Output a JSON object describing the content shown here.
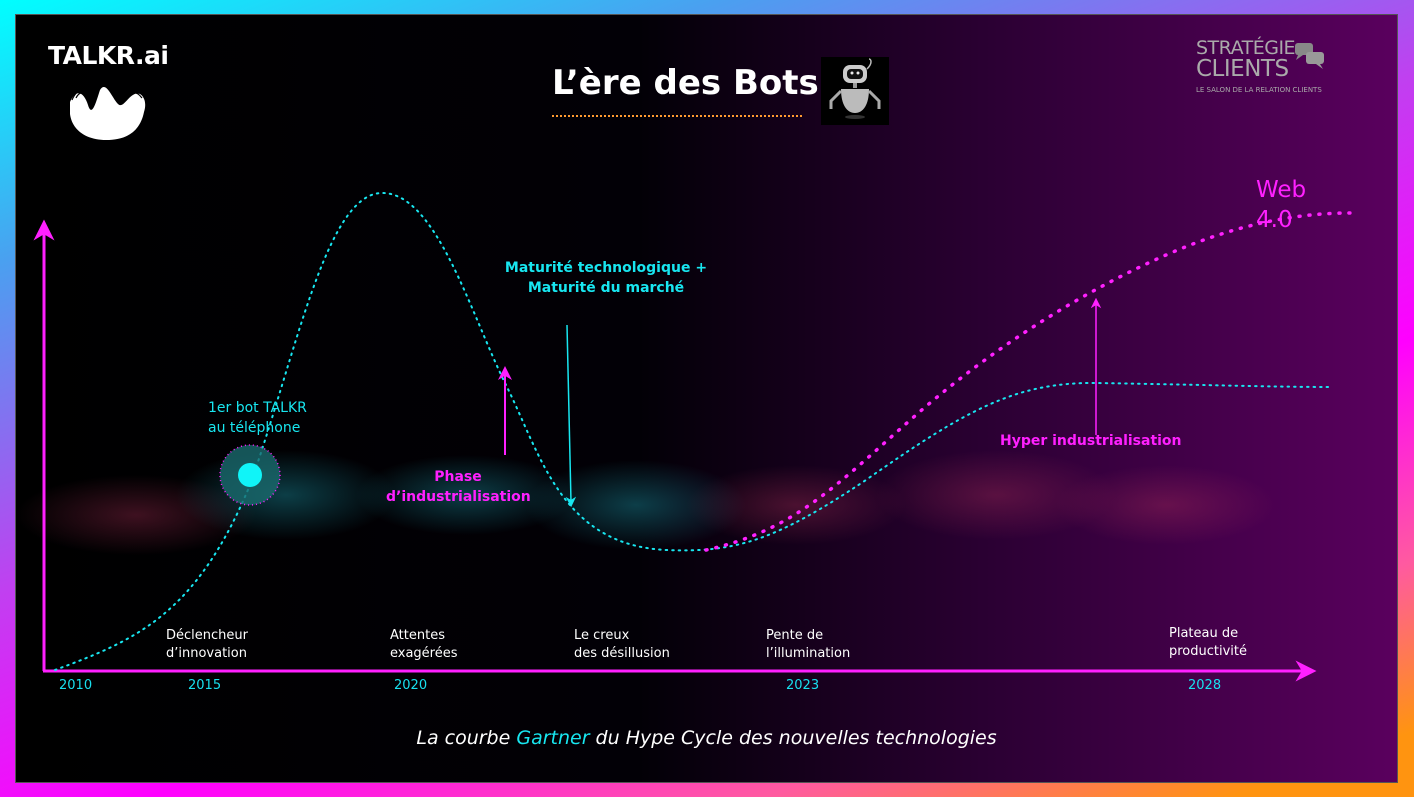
{
  "logo": {
    "brand": "TALKR.ai"
  },
  "header": {
    "title": "L’ère des Bots",
    "robot_icon": "robot-icon"
  },
  "sponsor_logo": {
    "line1": "STRATÉGIE",
    "line2": "CLIENTS",
    "tagline": "LE SALON DE LA RELATION CLIENTS"
  },
  "phases": [
    {
      "line1": "Déclencheur",
      "line2": "d’innovation"
    },
    {
      "line1": "Attentes",
      "line2": "exagérées"
    },
    {
      "line1": "Le creux",
      "line2": "des désillusion"
    },
    {
      "line1": "Pente de",
      "line2": "l’illumination"
    },
    {
      "line1": "Plateau de",
      "line2": "productivité"
    }
  ],
  "years": [
    "2010",
    "2015",
    "2020",
    "2023",
    "2028"
  ],
  "annotations": {
    "first_bot": {
      "line1": "1er bot TALKR",
      "line2": "au téléphone"
    },
    "maturity": {
      "line1": "Maturité technologique +",
      "line2": "Maturité du marché"
    },
    "industrialisation": {
      "line1": "Phase",
      "line2": "d’industrialisation"
    },
    "hyper": "Hyper industrialisation",
    "web4": {
      "line1": "Web",
      "line2": "4.0"
    }
  },
  "caption": {
    "before": "La courbe ",
    "highlight": "Gartner",
    "after": " du Hype Cycle des nouvelles technologies"
  },
  "colors": {
    "cyan": "#18e6f0",
    "magenta": "#ff20ff",
    "orange": "#ff9a30"
  }
}
